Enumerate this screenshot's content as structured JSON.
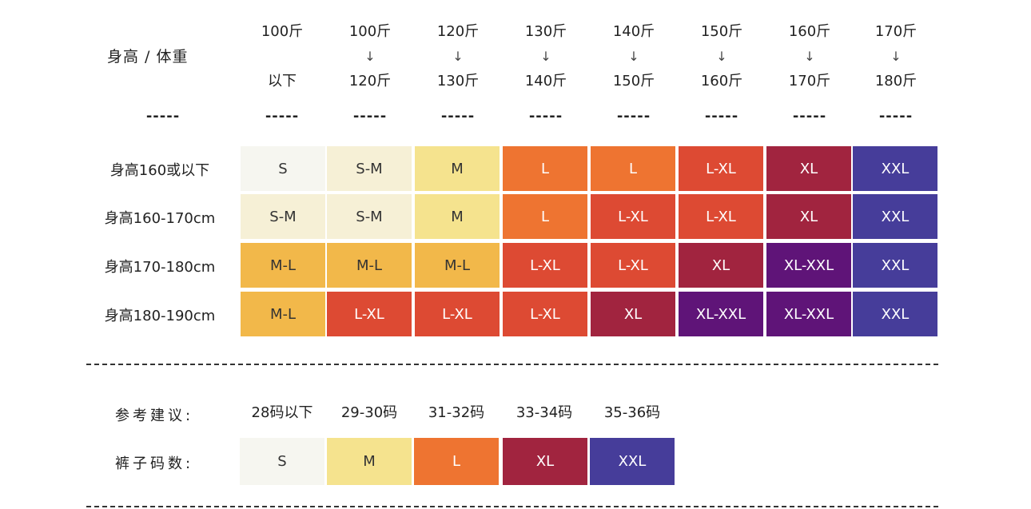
{
  "header": {
    "corner_label": "身高  /  体重",
    "weight_columns": [
      {
        "top": "100斤",
        "arrow": "",
        "bottom": "以下"
      },
      {
        "top": "100斤",
        "arrow": "↓",
        "bottom": "120斤"
      },
      {
        "top": "120斤",
        "arrow": "↓",
        "bottom": "130斤"
      },
      {
        "top": "130斤",
        "arrow": "↓",
        "bottom": "140斤"
      },
      {
        "top": "140斤",
        "arrow": "↓",
        "bottom": "150斤"
      },
      {
        "top": "150斤",
        "arrow": "↓",
        "bottom": "160斤"
      },
      {
        "top": "160斤",
        "arrow": "↓",
        "bottom": "170斤"
      },
      {
        "top": "170斤",
        "arrow": "↓",
        "bottom": "180斤"
      }
    ],
    "separator": "-----"
  },
  "size_table": {
    "rows": [
      {
        "label": "身高160或以下",
        "cells": [
          "S",
          "S-M",
          "M",
          "L",
          "L",
          "L-XL",
          "XL",
          "XXL"
        ]
      },
      {
        "label": "身高160-170cm",
        "cells": [
          "S-M",
          "S-M",
          "M",
          "L",
          "L-XL",
          "L-XL",
          "XL",
          "XXL"
        ]
      },
      {
        "label": "身高170-180cm",
        "cells": [
          "M-L",
          "M-L",
          "M-L",
          "L-XL",
          "L-XL",
          "XL",
          "XL-XXL",
          "XXL"
        ]
      },
      {
        "label": "身高180-190cm",
        "cells": [
          "M-L",
          "L-XL",
          "L-XL",
          "L-XL",
          "XL",
          "XL-XXL",
          "XL-XXL",
          "XXL"
        ]
      }
    ]
  },
  "size_colors": {
    "S": {
      "bg": "#f6f6f0",
      "fg": "#333333"
    },
    "S-M": {
      "bg": "#f6f0d6",
      "fg": "#333333"
    },
    "M": {
      "bg": "#f5e38e",
      "fg": "#333333"
    },
    "M-L": {
      "bg": "#f2b84a",
      "fg": "#333333"
    },
    "L": {
      "bg": "#ee7431",
      "fg": "#ffffff"
    },
    "L-XL": {
      "bg": "#dd4a33",
      "fg": "#ffffff"
    },
    "XL": {
      "bg": "#a1243f",
      "fg": "#ffffff"
    },
    "XL-XXL": {
      "bg": "#5f1478",
      "fg": "#ffffff"
    },
    "XXL": {
      "bg": "#463d9a",
      "fg": "#ffffff"
    }
  },
  "reference": {
    "label": "参考建议:",
    "codes": [
      "28码以下",
      "29-30码",
      "31-32码",
      "33-34码",
      "35-36码"
    ]
  },
  "pants": {
    "label": "裤子码数:",
    "sizes": [
      "S",
      "M",
      "L",
      "XL",
      "XXL"
    ]
  }
}
